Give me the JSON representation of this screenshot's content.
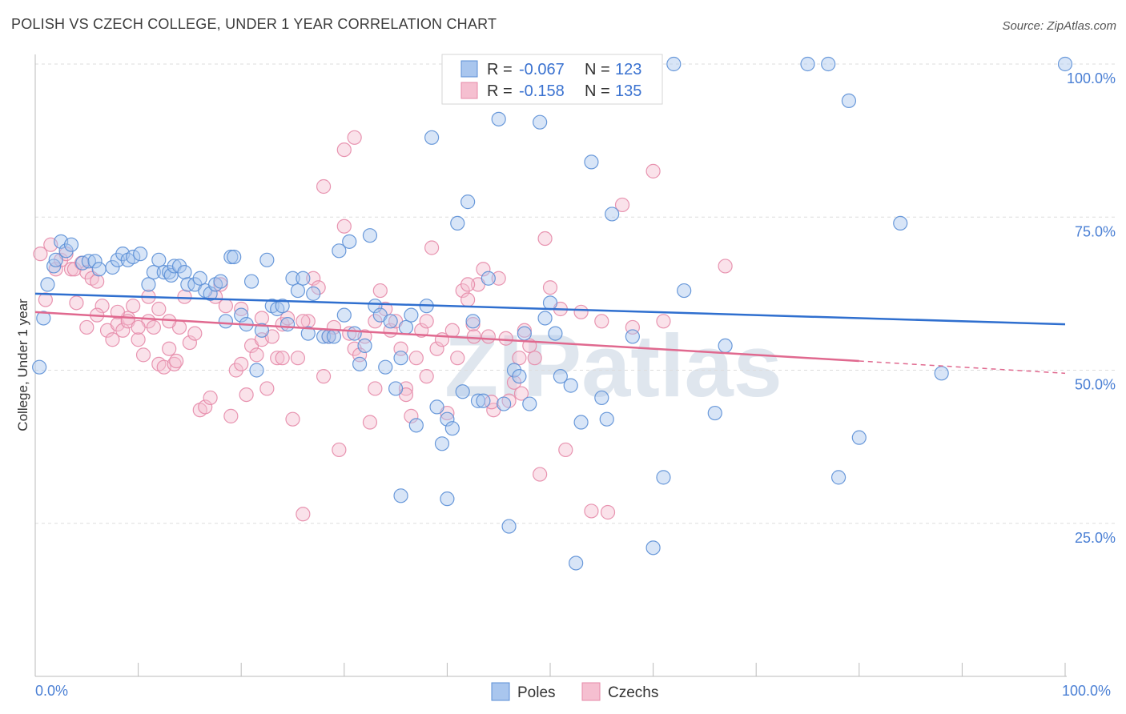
{
  "title": "POLISH VS CZECH COLLEGE, UNDER 1 YEAR CORRELATION CHART",
  "source": "Source: ZipAtlas.com",
  "watermark": "ZIPatlas",
  "colors": {
    "poles_fill": "#a9c6ee",
    "poles_stroke": "#5b8fd6",
    "poles_line": "#2f6fcf",
    "czechs_fill": "#f5bfd0",
    "czechs_stroke": "#e68aa8",
    "czechs_line": "#e0698f",
    "grid": "#dddddd",
    "tick_label": "#4a7fd4"
  },
  "legend": {
    "rows": [
      {
        "r_label": "R =",
        "r_value": "-0.067",
        "n_label": "N =",
        "n_value": "123"
      },
      {
        "r_label": "R =",
        "r_value": "-0.158",
        "n_label": "N =",
        "n_value": "135"
      }
    ]
  },
  "chart_data": {
    "type": "scatter",
    "title": "POLISH VS CZECH COLLEGE, UNDER 1 YEAR CORRELATION CHART",
    "xlabel": "",
    "ylabel": "College, Under 1 year",
    "xlim": [
      0,
      100
    ],
    "ylim": [
      0,
      100
    ],
    "x_tick_labels": [
      "0.0%",
      "100.0%"
    ],
    "y_ticks": [
      25,
      50,
      75,
      100
    ],
    "y_tick_labels": [
      "25.0%",
      "50.0%",
      "75.0%",
      "100.0%"
    ],
    "grid": true,
    "legend_position": "top-center",
    "series": [
      {
        "name": "Poles",
        "r": -0.067,
        "n": 123,
        "trend": {
          "x": [
            0,
            100
          ],
          "y": [
            62.5,
            57.5
          ]
        },
        "points": [
          [
            0.4,
            50.5
          ],
          [
            0.8,
            58.5
          ],
          [
            1.2,
            64
          ],
          [
            1.8,
            67
          ],
          [
            2.0,
            68
          ],
          [
            2.5,
            71
          ],
          [
            3.0,
            69.5
          ],
          [
            3.5,
            70.5
          ],
          [
            4.6,
            67.5
          ],
          [
            5.2,
            67.8
          ],
          [
            5.8,
            67.8
          ],
          [
            6.2,
            66.5
          ],
          [
            7.5,
            66.8
          ],
          [
            8.0,
            68
          ],
          [
            8.5,
            69
          ],
          [
            9.0,
            68
          ],
          [
            9.5,
            68.5
          ],
          [
            10.2,
            69
          ],
          [
            11.0,
            64
          ],
          [
            11.5,
            66
          ],
          [
            12.0,
            68
          ],
          [
            12.5,
            66
          ],
          [
            13.0,
            66
          ],
          [
            13.2,
            65.5
          ],
          [
            13.5,
            67
          ],
          [
            14.0,
            67
          ],
          [
            14.5,
            66
          ],
          [
            14.8,
            64
          ],
          [
            15.5,
            64
          ],
          [
            16,
            65
          ],
          [
            16.5,
            63
          ],
          [
            17,
            62.5
          ],
          [
            17.5,
            64
          ],
          [
            18,
            64.5
          ],
          [
            18.5,
            58
          ],
          [
            19,
            68.5
          ],
          [
            19.3,
            68.5
          ],
          [
            20,
            59
          ],
          [
            20.5,
            57.5
          ],
          [
            21,
            64.5
          ],
          [
            21.5,
            50
          ],
          [
            22,
            56.5
          ],
          [
            22.5,
            68
          ],
          [
            23,
            60.5
          ],
          [
            23.5,
            60
          ],
          [
            24,
            60.5
          ],
          [
            24.5,
            57.5
          ],
          [
            25,
            65
          ],
          [
            25.5,
            63
          ],
          [
            26,
            65
          ],
          [
            26.5,
            56
          ],
          [
            27,
            62.5
          ],
          [
            28,
            55.5
          ],
          [
            28.5,
            55.5
          ],
          [
            29,
            55.5
          ],
          [
            29.5,
            69.5
          ],
          [
            30,
            59
          ],
          [
            30.5,
            71
          ],
          [
            31,
            56
          ],
          [
            31.5,
            51
          ],
          [
            32,
            54
          ],
          [
            32.5,
            72
          ],
          [
            33,
            60.5
          ],
          [
            33.5,
            59
          ],
          [
            34,
            50.5
          ],
          [
            34.5,
            58
          ],
          [
            35,
            47
          ],
          [
            35.5,
            52
          ],
          [
            36,
            57
          ],
          [
            36.5,
            59
          ],
          [
            37,
            41
          ],
          [
            38,
            60.5
          ],
          [
            38.5,
            88
          ],
          [
            39,
            44
          ],
          [
            39.5,
            38
          ],
          [
            40,
            42
          ],
          [
            40.5,
            40.5
          ],
          [
            41,
            74
          ],
          [
            41.5,
            46.5
          ],
          [
            42,
            77.5
          ],
          [
            42.5,
            58
          ],
          [
            43,
            45
          ],
          [
            43.5,
            45
          ],
          [
            44,
            65
          ],
          [
            45,
            91
          ],
          [
            45.5,
            44.5
          ],
          [
            46,
            24.5
          ],
          [
            46.5,
            50
          ],
          [
            47,
            49
          ],
          [
            47.5,
            56
          ],
          [
            48,
            44.5
          ],
          [
            49,
            90.5
          ],
          [
            49.5,
            58.5
          ],
          [
            50,
            61
          ],
          [
            50.5,
            56
          ],
          [
            51,
            49
          ],
          [
            52,
            47.5
          ],
          [
            52.5,
            18.5
          ],
          [
            53,
            41.5
          ],
          [
            54,
            84
          ],
          [
            55,
            45.5
          ],
          [
            55.5,
            42
          ],
          [
            56,
            75.5
          ],
          [
            58,
            55.5
          ],
          [
            60,
            21
          ],
          [
            61,
            32.5
          ],
          [
            62,
            100
          ],
          [
            63,
            63
          ],
          [
            66,
            43
          ],
          [
            67,
            54
          ],
          [
            75,
            100
          ],
          [
            77,
            100
          ],
          [
            78,
            32.5
          ],
          [
            79,
            94
          ],
          [
            80,
            39
          ],
          [
            84,
            74
          ],
          [
            88,
            49.5
          ],
          [
            100,
            100
          ],
          [
            35.5,
            29.5
          ],
          [
            40,
            29
          ]
        ]
      },
      {
        "name": "Czechs",
        "r": -0.158,
        "n": 135,
        "trend": {
          "x": [
            0,
            80
          ],
          "y": [
            59.5,
            51.5
          ]
        },
        "trend_dashed": {
          "x": [
            80,
            100
          ],
          "y": [
            51.5,
            49.5
          ]
        },
        "points": [
          [
            0.5,
            69
          ],
          [
            1.0,
            61.5
          ],
          [
            1.5,
            70.5
          ],
          [
            2,
            66.5
          ],
          [
            2.5,
            68
          ],
          [
            3,
            69
          ],
          [
            3.5,
            66.5
          ],
          [
            3.8,
            66.5
          ],
          [
            4,
            61
          ],
          [
            4.5,
            67.5
          ],
          [
            5,
            66
          ],
          [
            5.5,
            65
          ],
          [
            6,
            64.5
          ],
          [
            6.5,
            60.5
          ],
          [
            7,
            56.5
          ],
          [
            7.5,
            55
          ],
          [
            8,
            57.5
          ],
          [
            8.5,
            56.5
          ],
          [
            9,
            58.5
          ],
          [
            9.5,
            60.5
          ],
          [
            10,
            55
          ],
          [
            10.5,
            52.5
          ],
          [
            11,
            58
          ],
          [
            11.5,
            57
          ],
          [
            12,
            51
          ],
          [
            12.5,
            50.5
          ],
          [
            13,
            53.5
          ],
          [
            13.5,
            51
          ],
          [
            14,
            57
          ],
          [
            14.5,
            62
          ],
          [
            15,
            54.5
          ],
          [
            15.5,
            56
          ],
          [
            16,
            43.5
          ],
          [
            16.5,
            44
          ],
          [
            17,
            45.5
          ],
          [
            17.5,
            62
          ],
          [
            18,
            64
          ],
          [
            18.5,
            60.5
          ],
          [
            19,
            42.5
          ],
          [
            19.5,
            50
          ],
          [
            20,
            51
          ],
          [
            20.5,
            46
          ],
          [
            21,
            54
          ],
          [
            21.5,
            52.5
          ],
          [
            22,
            55
          ],
          [
            22.5,
            47
          ],
          [
            23,
            55.5
          ],
          [
            23.5,
            52
          ],
          [
            24,
            57.5
          ],
          [
            24.5,
            58.5
          ],
          [
            25,
            42
          ],
          [
            25.5,
            52
          ],
          [
            26,
            26.5
          ],
          [
            26.5,
            58
          ],
          [
            27,
            65
          ],
          [
            27.5,
            63.5
          ],
          [
            28,
            49
          ],
          [
            28.5,
            55.5
          ],
          [
            29,
            57
          ],
          [
            29.5,
            37
          ],
          [
            30,
            73.5
          ],
          [
            30.5,
            56
          ],
          [
            31,
            53.5
          ],
          [
            31.5,
            52.5
          ],
          [
            32,
            55.5
          ],
          [
            32.5,
            41.5
          ],
          [
            33,
            47
          ],
          [
            33.5,
            63
          ],
          [
            34,
            60
          ],
          [
            34.5,
            56.5
          ],
          [
            35,
            58
          ],
          [
            35.5,
            53.5
          ],
          [
            36,
            47
          ],
          [
            36.5,
            42.5
          ],
          [
            37,
            52
          ],
          [
            37.5,
            56.5
          ],
          [
            38,
            49
          ],
          [
            38.5,
            70
          ],
          [
            39,
            53.5
          ],
          [
            39.5,
            55
          ],
          [
            40,
            43
          ],
          [
            40.5,
            56.5
          ],
          [
            41,
            52
          ],
          [
            41.5,
            63
          ],
          [
            42,
            61.5
          ],
          [
            42.5,
            57.5
          ],
          [
            43,
            64
          ],
          [
            43.5,
            66.5
          ],
          [
            44,
            55.5
          ],
          [
            44.5,
            43.5
          ],
          [
            45,
            65
          ],
          [
            46,
            45
          ],
          [
            46.5,
            48
          ],
          [
            47,
            52
          ],
          [
            47.5,
            56.5
          ],
          [
            48,
            54
          ],
          [
            48.5,
            52
          ],
          [
            49,
            33
          ],
          [
            49.5,
            71.5
          ],
          [
            50,
            63.5
          ],
          [
            51,
            60
          ],
          [
            51.5,
            37
          ],
          [
            53,
            59.5
          ],
          [
            54,
            27
          ],
          [
            55,
            58
          ],
          [
            57,
            77
          ],
          [
            58,
            57
          ],
          [
            60,
            82.5
          ],
          [
            61,
            58
          ],
          [
            67,
            67
          ],
          [
            28,
            80
          ],
          [
            30,
            86
          ],
          [
            31,
            88
          ],
          [
            20,
            60
          ],
          [
            22,
            58.5
          ],
          [
            24,
            52
          ],
          [
            26,
            58
          ],
          [
            33,
            58
          ],
          [
            36,
            46
          ],
          [
            38,
            58
          ],
          [
            13.7,
            51.5
          ],
          [
            13,
            58
          ],
          [
            12,
            60
          ],
          [
            5,
            57
          ],
          [
            6,
            59
          ],
          [
            8,
            59.5
          ],
          [
            9,
            58
          ],
          [
            10,
            57
          ],
          [
            11,
            62
          ],
          [
            42,
            64
          ],
          [
            42.6,
            55.5
          ],
          [
            44.3,
            44.8
          ],
          [
            45.7,
            55.2
          ],
          [
            47.2,
            46.2
          ],
          [
            55.6,
            26.8
          ]
        ]
      }
    ]
  },
  "bottom_legend": {
    "items": [
      {
        "label": "Poles"
      },
      {
        "label": "Czechs"
      }
    ]
  }
}
